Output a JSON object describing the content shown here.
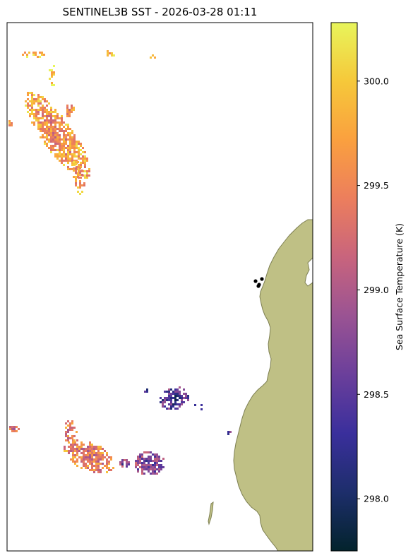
{
  "chart_data": {
    "type": "heatmap",
    "title": "SENTINEL3B SST - 2026-03-28 01:11",
    "colorbar": {
      "label": "Sea Surface Temperature (K)",
      "range": [
        297.75,
        300.28
      ],
      "ticks": [
        298.0,
        298.5,
        299.0,
        299.5,
        300.0
      ],
      "tick_labels": [
        "298.0",
        "298.5",
        "299.0",
        "299.5",
        "300.0"
      ],
      "colormap": [
        "#03232c",
        "#1d2e6b",
        "#3a2f9c",
        "#6b3f9b",
        "#9a5393",
        "#c8647d",
        "#ec7e5d",
        "#faa03f",
        "#f6c83a",
        "#e8f55b"
      ]
    },
    "colors": {
      "land": "#bfc085",
      "coast": "#7d7f52",
      "background": "#ffffff",
      "stations": "#000000"
    },
    "sst_patches": [
      {
        "region": "north-west",
        "mean_temp": 299.6
      },
      {
        "region": "far-north",
        "mean_temp": 299.9
      },
      {
        "region": "south-west",
        "mean_temp": 299.4
      },
      {
        "region": "south-central",
        "mean_temp": 298.7
      },
      {
        "region": "mid-south",
        "mean_temp": 298.4
      }
    ],
    "station_count": 4
  }
}
